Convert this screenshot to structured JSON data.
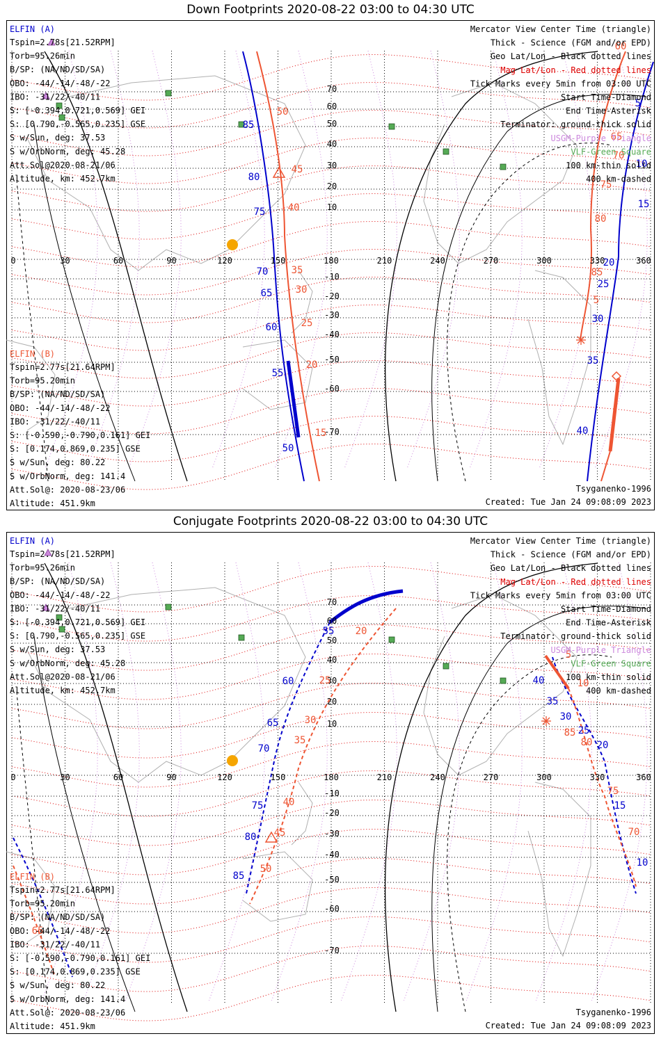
{
  "colors": {
    "elfin_a": "#0000cc",
    "elfin_b": "#ee5533",
    "mag_grid": "#dd0000",
    "geo_grid": "#000000",
    "legend_text": "#000000",
    "purple": "#cc88dd",
    "green": "#55aa55",
    "coast": "#b0b0b0",
    "sun": "#f5a500"
  },
  "icons": {
    "sun": "sun-icon",
    "triangle": "usgm-purple-triangle-icon",
    "square": "vlf-green-square-icon"
  },
  "panels": [
    {
      "title": "Down Footprints 2020-08-22 03:00 to 04:30 UTC",
      "elfin_a": {
        "heading": "ELFIN (A)",
        "lines": [
          "Tspin=2.78s[21.52RPM]",
          "Torb=95.26min",
          "B/SP: (NA/ND/SD/SA)",
          "OBO: -44/-14/-48/-22",
          "IBO: -31/22/-40/11",
          "S: [-0.394,0.721,0.569] GEI",
          "S: [0.790,-0.565,0.235] GSE",
          "S w/Sun, deg: 37.53",
          "S w/OrbNorm, deg: 45.28",
          "Att.Sol@2020-08-21/06",
          "Altitude, km: 452.7km"
        ]
      },
      "elfin_b": {
        "heading": "ELFIN (B)",
        "lines": [
          "Tspin=2.77s[21.64RPM]",
          "Torb=95.20min",
          "B/SP: (NA/ND/SD/SA)",
          "OBO: -44/-14/-48/-22",
          "IBO: -31/22/-40/11",
          "S: [-0.590,-0.790,0.161] GEI",
          "S: [0.174,0.869,0.235] GSE",
          "S w/Sun, deg: 80.22",
          "S w/OrbNorm, deg: 141.4",
          "Att.Sol@: 2020-08-23/06",
          "Altitude: 451.9km"
        ]
      },
      "legend": [
        "Mercator View Center Time (triangle)",
        "Thick - Science (FGM and/or EPD)",
        "Geo Lat/Lon - Black dotted lines",
        "Mag Lat/Lon - Red dotted lines",
        "Tick Marks every 5min from 03:00 UTC",
        "Start Time-Diamond",
        "End Time-Asterisk",
        "Terminator: ground-thick solid",
        "USGM-Purple Triangle",
        "VLF-Green Square",
        "100 km-thin solid",
        "400 km-dashed"
      ],
      "model": "Tsyganenko-1996",
      "created": "Created: Tue Jan 24 09:08:09 2023",
      "lon_ticks": [
        "0",
        "30",
        "60",
        "90",
        "120",
        "150",
        "180",
        "210",
        "240",
        "270",
        "300",
        "330",
        "360"
      ],
      "lat_ticks": [
        "70",
        "60",
        "50",
        "40",
        "30",
        "20",
        "10",
        "-10",
        "-20",
        "-30",
        "-40",
        "-50",
        "-60",
        "-70"
      ],
      "a_tick_labels": [
        "85",
        "80",
        "75",
        "70",
        "65",
        "60",
        "55",
        "50",
        "5",
        "10",
        "15",
        "20",
        "25",
        "30",
        "35",
        "40"
      ],
      "b_tick_labels": [
        "50",
        "45",
        "40",
        "35",
        "30",
        "25",
        "20",
        "15",
        "60",
        "65",
        "70",
        "75",
        "80",
        "85",
        "5"
      ]
    },
    {
      "title": "Conjugate Footprints 2020-08-22 03:00 to 04:30 UTC",
      "elfin_a": {
        "heading": "ELFIN (A)",
        "lines": [
          "Tspin=2.78s[21.52RPM]",
          "Torb=95.26min",
          "B/SP: (NA/ND/SD/SA)",
          "OBO: -44/-14/-48/-22",
          "IBO: -31/22/-40/11",
          "S: [-0.394,0.721,0.569] GEI",
          "S: [0.790,-0.565,0.235] GSE",
          "S w/Sun, deg: 37.53",
          "S w/OrbNorm, deg: 45.28",
          "Att.Sol@2020-08-21/06",
          "Altitude, km: 452.7km"
        ]
      },
      "elfin_b": {
        "heading": "ELFIN (B)",
        "lines": [
          "Tspin=2.77s[21.64RPM]",
          "Torb=95.20min",
          "B/SP: (NA/ND/SD/SA)",
          "OBO: -44/-14/-48/-22",
          "IBO: -31/22/-40/11",
          "S: [-0.590,-0.790,0.161] GEI",
          "S: [0.174,0.869,0.235] GSE",
          "S w/Sun, deg: 80.22",
          "S w/OrbNorm, deg: 141.4",
          "Att.Sol@: 2020-08-23/06",
          "Altitude: 451.9km"
        ]
      },
      "legend": [
        "Mercator View Center Time (triangle)",
        "Thick - Science (FGM and/or EPD)",
        "Geo Lat/Lon - Black dotted lines",
        "Mag Lat/Lon - Red dotted lines",
        "Tick Marks every 5min from 03:00 UTC",
        "Start Time-Diamond",
        "End Time-Asterisk",
        "Terminator: ground-thick solid",
        "USGM-Purple Triangle",
        "VLF-Green Square",
        "100 km-thin solid",
        "400 km-dashed"
      ],
      "model": "Tsyganenko-1996",
      "created": "Created: Tue Jan 24 09:08:09 2023",
      "lon_ticks": [
        "0",
        "30",
        "60",
        "90",
        "120",
        "150",
        "180",
        "210",
        "240",
        "270",
        "300",
        "330",
        "360"
      ],
      "lat_ticks": [
        "70",
        "60",
        "50",
        "40",
        "30",
        "20",
        "10",
        "-10",
        "-20",
        "-30",
        "-40",
        "-50",
        "-60",
        "-70"
      ],
      "a_tick_labels": [
        "55",
        "60",
        "65",
        "70",
        "75",
        "80",
        "85",
        "40",
        "35",
        "30",
        "25",
        "20",
        "15",
        "10"
      ],
      "b_tick_labels": [
        "20",
        "25",
        "30",
        "35",
        "40",
        "45",
        "50",
        "5",
        "10",
        "85",
        "80",
        "75",
        "70",
        "65"
      ]
    }
  ]
}
